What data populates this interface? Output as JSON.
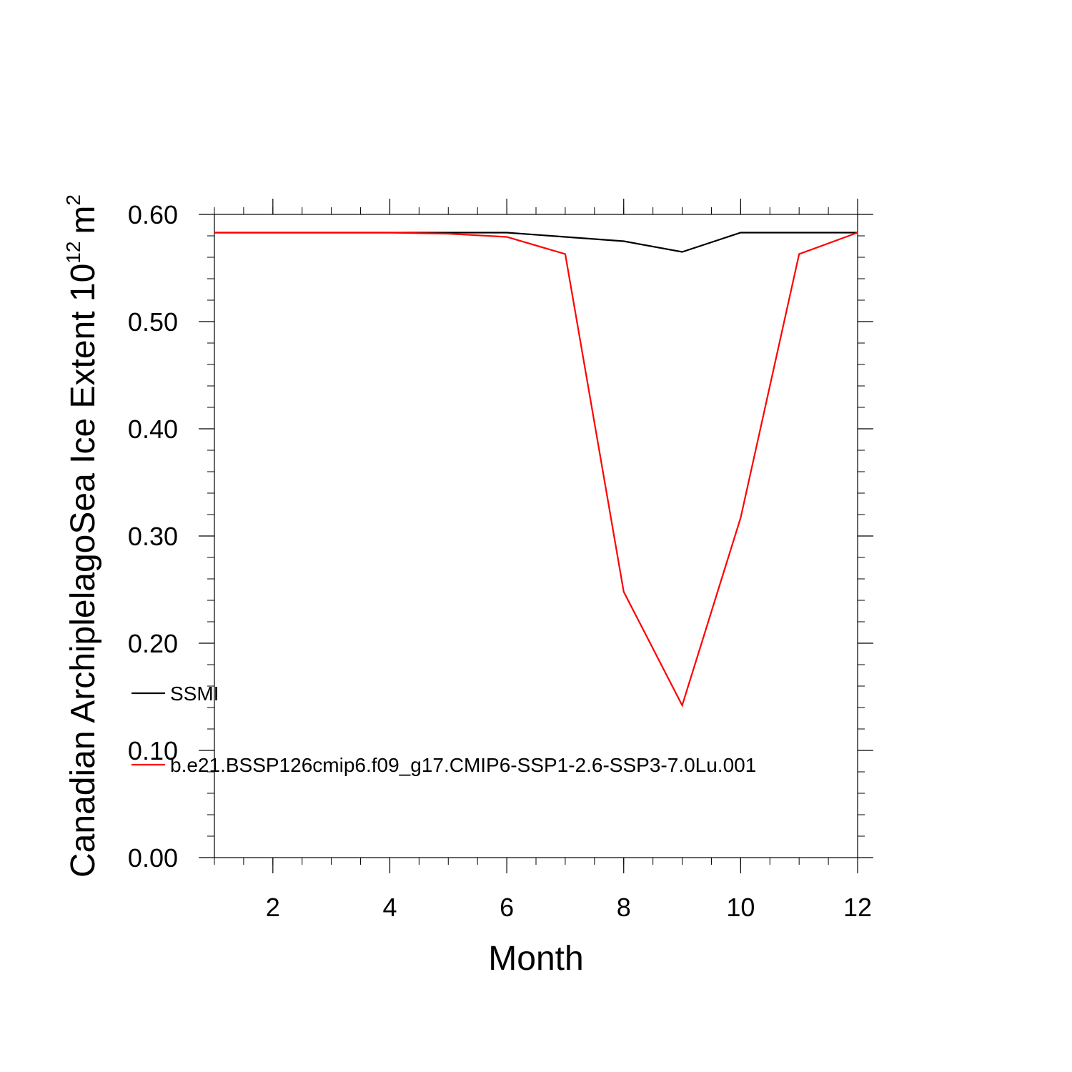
{
  "chart_data": {
    "type": "line",
    "xlabel": "Month",
    "ylabel": "Canadian ArchiplelagoSea Ice Extent 10",
    "ylabel_exponent": "12",
    "ylabel_unit": "m",
    "ylabel_unit_exponent": "2",
    "xlim": [
      1,
      12
    ],
    "ylim": [
      0.0,
      0.6
    ],
    "x_ticks": [
      2,
      4,
      6,
      8,
      10,
      12
    ],
    "x_tick_labels": [
      "2",
      "4",
      "6",
      "8",
      "10",
      "12"
    ],
    "y_ticks": [
      0.0,
      0.1,
      0.2,
      0.3,
      0.4,
      0.5,
      0.6
    ],
    "y_tick_labels": [
      "0.00",
      "0.10",
      "0.20",
      "0.30",
      "0.40",
      "0.50",
      "0.60"
    ],
    "grid": false,
    "legend_position": "left, inside",
    "x": [
      1,
      2,
      3,
      4,
      5,
      6,
      7,
      8,
      9,
      10,
      11,
      12
    ],
    "series": [
      {
        "name": "SSMI",
        "color": "#000000",
        "values": [
          0.583,
          0.583,
          0.583,
          0.583,
          0.583,
          0.583,
          0.579,
          0.575,
          0.565,
          0.583,
          0.583,
          0.583
        ]
      },
      {
        "name": "b.e21.BSSP126cmip6.f09_g17.CMIP6-SSP1-2.6-SSP3-7.0Lu.001",
        "color": "#ff0000",
        "values": [
          0.583,
          0.583,
          0.583,
          0.583,
          0.582,
          0.579,
          0.563,
          0.248,
          0.142,
          0.317,
          0.563,
          0.583
        ]
      }
    ]
  }
}
